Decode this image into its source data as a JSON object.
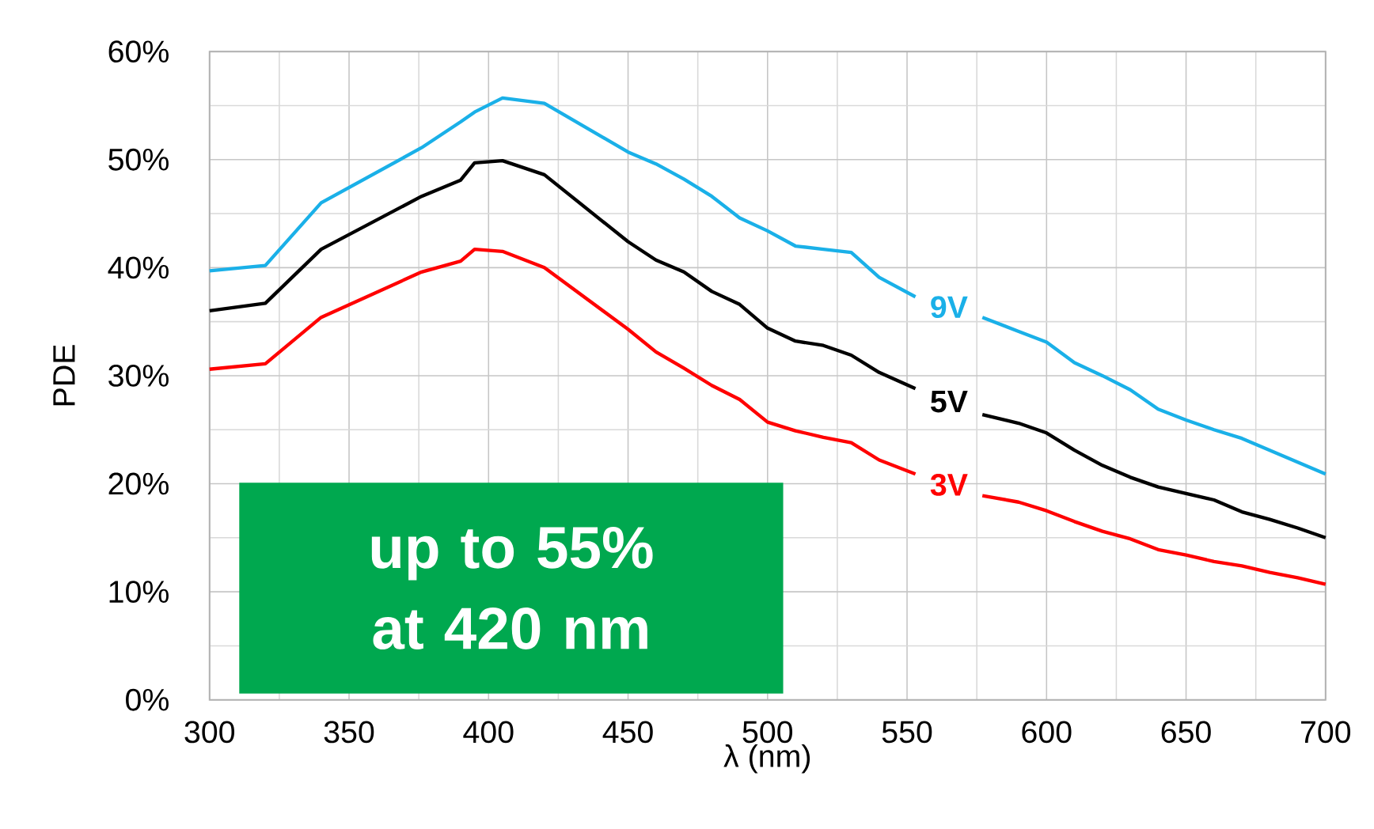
{
  "chart_data": {
    "type": "line",
    "xlabel": "λ (nm)",
    "ylabel": "PDE",
    "x": [
      300,
      320,
      340,
      376,
      390,
      395,
      405,
      420,
      450,
      460,
      470,
      480,
      490,
      500,
      510,
      520,
      530,
      540,
      553,
      565,
      577,
      590,
      600,
      610,
      620,
      630,
      640,
      650,
      660,
      670,
      680,
      690,
      700
    ],
    "series": [
      {
        "name": "9V",
        "color": "#1ab0e8",
        "values": [
          39.7,
          40.2,
          46.0,
          51.1,
          53.5,
          54.4,
          55.7,
          55.2,
          50.7,
          49.6,
          48.2,
          46.6,
          44.6,
          43.4,
          42.0,
          41.7,
          41.4,
          39.1,
          37.3,
          null,
          35.4,
          34.1,
          33.1,
          31.2,
          30.0,
          28.7,
          26.9,
          25.9,
          25.0,
          24.2,
          23.1,
          22.0,
          20.9
        ]
      },
      {
        "name": "5V",
        "color": "#000000",
        "values": [
          36.0,
          36.7,
          41.7,
          46.6,
          48.1,
          49.7,
          49.9,
          48.6,
          42.4,
          40.7,
          39.6,
          37.8,
          36.6,
          34.4,
          33.2,
          32.8,
          31.9,
          30.3,
          28.8,
          null,
          26.4,
          25.6,
          24.7,
          23.1,
          21.7,
          20.6,
          19.7,
          19.1,
          18.5,
          17.4,
          16.7,
          15.9,
          15.0
        ]
      },
      {
        "name": "3V",
        "color": "#ff0000",
        "values": [
          30.6,
          31.1,
          35.4,
          39.6,
          40.6,
          41.7,
          41.5,
          40.0,
          34.3,
          32.2,
          30.7,
          29.1,
          27.8,
          25.7,
          24.9,
          24.3,
          23.8,
          22.2,
          20.9,
          null,
          18.9,
          18.3,
          17.5,
          16.5,
          15.6,
          14.9,
          13.9,
          13.4,
          12.8,
          12.4,
          11.8,
          11.3,
          10.7
        ]
      }
    ],
    "xlim": [
      300,
      700
    ],
    "ylim": [
      0,
      60
    ],
    "xticks": [
      300,
      350,
      400,
      450,
      500,
      550,
      600,
      650,
      700
    ],
    "yticks": [
      {
        "value": 0,
        "label": "0%"
      },
      {
        "value": 10,
        "label": "10%"
      },
      {
        "value": 20,
        "label": "20%"
      },
      {
        "value": 30,
        "label": "30%"
      },
      {
        "value": 40,
        "label": "40%"
      },
      {
        "value": 50,
        "label": "50%"
      },
      {
        "value": 60,
        "label": "60%"
      }
    ],
    "grid": true,
    "marker": "none",
    "line_style": "solid",
    "annotations": [
      "up to 55% at 420 nm"
    ]
  }
}
